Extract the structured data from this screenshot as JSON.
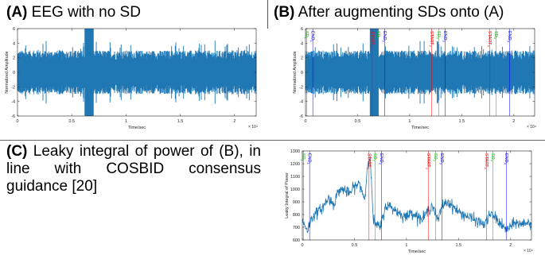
{
  "panels": {
    "a": {
      "letter": "(A)",
      "text": "EEG with no SD"
    },
    "b": {
      "letter": "(B)",
      "text": "After augmenting SDs onto (A)"
    },
    "c": {
      "letter": "(C)",
      "text": "Leaky integral of power of (B), in line with COSBID consensus guidance [20]"
    }
  },
  "colors": {
    "signal": "#1f77b4",
    "start": "#ff0000",
    "sd": "#00bb00",
    "end": "#0000ff"
  },
  "chart_data": [
    {
      "id": "a",
      "type": "line",
      "title": "",
      "xlabel": "Time/sec",
      "ylabel": "Normalized Amplitude",
      "xlim": [
        0,
        2.2
      ],
      "ylim": [
        -6,
        6
      ],
      "x_exponent": "× 10⁴",
      "xticks": [
        "0",
        "0.5",
        "1",
        "1.5",
        "2"
      ],
      "yticks": [
        "-6",
        "-4",
        "-2",
        "0",
        "2",
        "4",
        "6"
      ],
      "series": [
        {
          "envelope_pos": 3.0,
          "envelope_neg": -3.0,
          "bursts": [
            0.64,
            0.68
          ],
          "burst_peak": 6.5
        }
      ]
    },
    {
      "id": "b",
      "type": "line",
      "title": "",
      "xlabel": "Time/sec",
      "ylabel": "Normalized Amplitude",
      "xlim": [
        0,
        2.2
      ],
      "ylim": [
        -6,
        6
      ],
      "x_exponent": "× 10⁴",
      "xticks": [
        "0",
        "0.5",
        "1",
        "1.5",
        "2"
      ],
      "yticks": [
        "-6",
        "-4",
        "-2",
        "0",
        "2",
        "4",
        "6"
      ],
      "markers": [
        {
          "x": 0.01,
          "kind": "sd",
          "label": "SD",
          "sub": "1"
        },
        {
          "x": 0.07,
          "kind": "end",
          "label": "END",
          "sub": "1"
        },
        {
          "x": 0.64,
          "kind": "start",
          "label": "START",
          "sub": "2"
        },
        {
          "x": 0.7,
          "kind": "sd",
          "label": "SD",
          "sub": "2"
        },
        {
          "x": 0.76,
          "kind": "end",
          "label": "END",
          "sub": "2"
        },
        {
          "x": 1.21,
          "kind": "start",
          "label": "START",
          "sub": "3"
        },
        {
          "x": 1.28,
          "kind": "sd",
          "label": "SD",
          "sub": "3"
        },
        {
          "x": 1.34,
          "kind": "end",
          "label": "END",
          "sub": "3"
        },
        {
          "x": 1.77,
          "kind": "start",
          "label": "START",
          "sub": "4"
        },
        {
          "x": 1.83,
          "kind": "sd",
          "label": "SD",
          "sub": "4"
        },
        {
          "x": 1.96,
          "kind": "end",
          "label": "END",
          "sub": "4"
        }
      ]
    },
    {
      "id": "c",
      "type": "line",
      "title": "",
      "xlabel": "Time/sec",
      "ylabel": "Leaky Integral of Power",
      "xlim": [
        0,
        2.2
      ],
      "ylim": [
        600,
        1300
      ],
      "x_exponent": "× 10⁴",
      "xticks": [
        "0",
        "0.5",
        "1",
        "1.5",
        "2"
      ],
      "yticks": [
        "600",
        "700",
        "800",
        "900",
        "1000",
        "1100",
        "1200",
        "1300"
      ],
      "markers": [
        {
          "x": 0.01,
          "kind": "sd",
          "label": "SD",
          "sub": "1"
        },
        {
          "x": 0.07,
          "kind": "end",
          "label": "END",
          "sub": "1"
        },
        {
          "x": 0.64,
          "kind": "start",
          "label": "START",
          "sub": "2"
        },
        {
          "x": 0.7,
          "kind": "sd",
          "label": "SD",
          "sub": "2"
        },
        {
          "x": 0.76,
          "kind": "end",
          "label": "END",
          "sub": "2"
        },
        {
          "x": 1.21,
          "kind": "start",
          "label": "START",
          "sub": "3"
        },
        {
          "x": 1.28,
          "kind": "sd",
          "label": "SD",
          "sub": "3"
        },
        {
          "x": 1.34,
          "kind": "end",
          "label": "END",
          "sub": "3"
        },
        {
          "x": 1.77,
          "kind": "start",
          "label": "START",
          "sub": "4"
        },
        {
          "x": 1.83,
          "kind": "sd",
          "label": "SD",
          "sub": "4"
        },
        {
          "x": 1.96,
          "kind": "end",
          "label": "END",
          "sub": "4"
        }
      ],
      "series": [
        {
          "x": [
            0,
            0.05,
            0.1,
            0.15,
            0.2,
            0.25,
            0.3,
            0.35,
            0.4,
            0.45,
            0.5,
            0.55,
            0.6,
            0.63,
            0.65,
            0.68,
            0.7,
            0.75,
            0.8,
            0.85,
            0.9,
            0.95,
            1.0,
            1.05,
            1.1,
            1.15,
            1.2,
            1.25,
            1.3,
            1.35,
            1.4,
            1.45,
            1.5,
            1.55,
            1.6,
            1.65,
            1.7,
            1.75,
            1.8,
            1.85,
            1.9,
            1.95,
            2.0,
            2.05,
            2.1,
            2.15,
            2.2
          ],
          "values": [
            750,
            680,
            790,
            820,
            860,
            930,
            880,
            990,
            1000,
            960,
            1020,
            1040,
            920,
            1220,
            1270,
            770,
            720,
            700,
            870,
            860,
            830,
            800,
            780,
            820,
            790,
            760,
            820,
            880,
            750,
            880,
            900,
            860,
            820,
            800,
            780,
            760,
            740,
            720,
            800,
            780,
            730,
            680,
            700,
            740,
            720,
            740,
            730
          ]
        }
      ]
    }
  ]
}
